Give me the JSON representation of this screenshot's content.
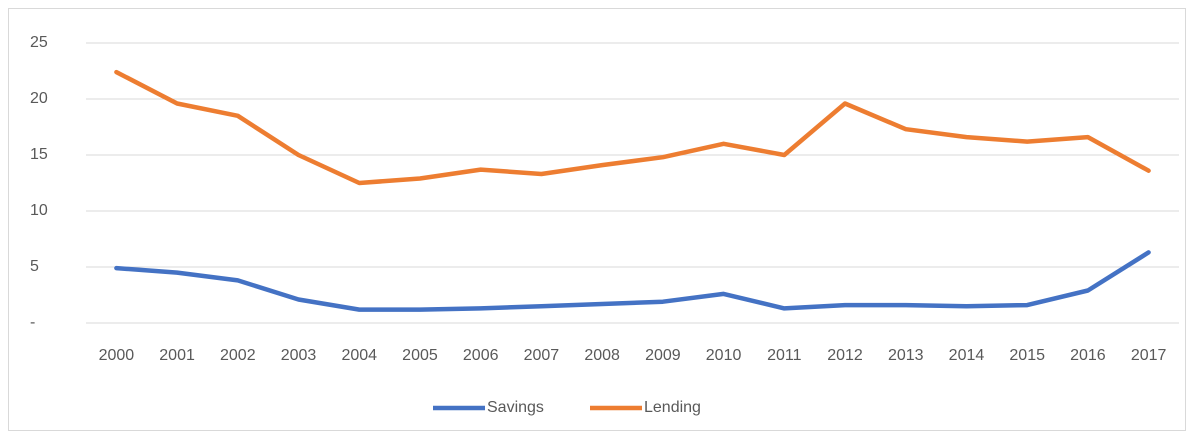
{
  "chart_data": {
    "type": "line",
    "categories": [
      "2000",
      "2001",
      "2002",
      "2003",
      "2004",
      "2005",
      "2006",
      "2007",
      "2008",
      "2009",
      "2010",
      "2011",
      "2012",
      "2013",
      "2014",
      "2015",
      "2016",
      "2017"
    ],
    "series": [
      {
        "name": "Savings",
        "color": "#4472c4",
        "values": [
          4.9,
          4.5,
          3.8,
          2.1,
          1.2,
          1.2,
          1.3,
          1.5,
          1.7,
          1.9,
          2.6,
          1.3,
          1.6,
          1.6,
          1.5,
          1.6,
          2.9,
          6.3
        ]
      },
      {
        "name": "Lending",
        "color": "#ed7d31",
        "values": [
          22.4,
          19.6,
          18.5,
          15.0,
          12.5,
          12.9,
          13.7,
          13.3,
          14.1,
          14.8,
          16.0,
          15.0,
          19.6,
          17.3,
          16.6,
          16.2,
          16.6,
          13.6
        ]
      }
    ],
    "ylim": [
      0,
      25
    ],
    "yticks": [
      {
        "value": 0,
        "label": "-"
      },
      5,
      10,
      15,
      20,
      25
    ],
    "grid": true,
    "legend": "bottom"
  }
}
